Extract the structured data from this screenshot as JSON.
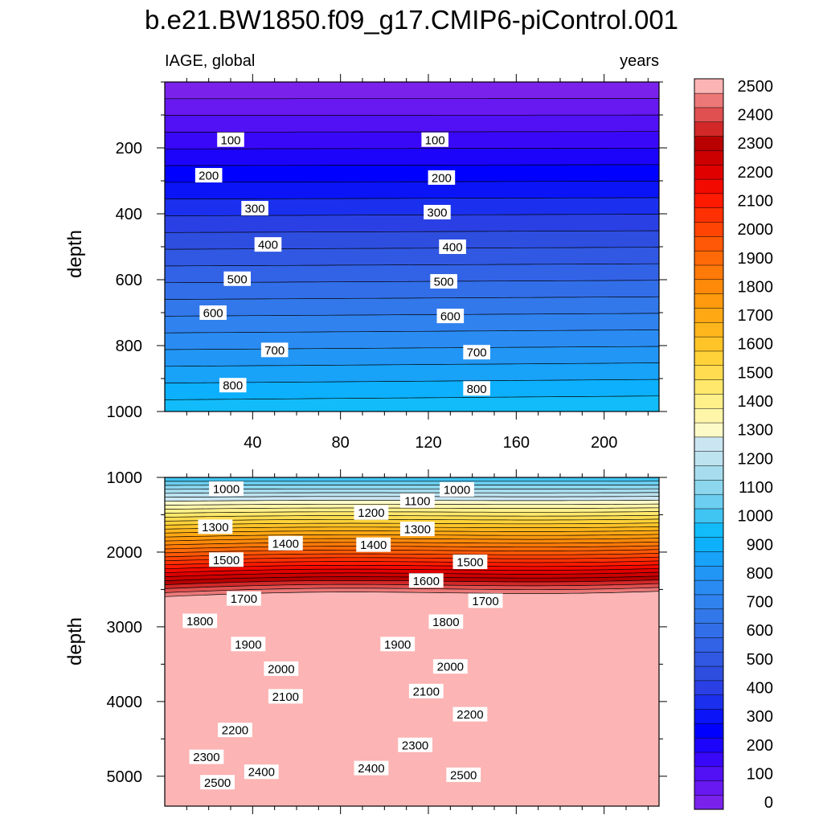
{
  "chart_data": {
    "type": "contour",
    "title": "b.e21.BW1850.f09_g17.CMIP6-piControl.001",
    "left_label": "IAGE, global",
    "right_label": "years",
    "ylabel": "depth",
    "xlim": [
      0,
      225
    ],
    "x_ticks": [
      40,
      80,
      120,
      160,
      200
    ],
    "x_tick_labels": [
      "40",
      "80",
      "120",
      "160",
      "200"
    ],
    "levels": [
      0,
      50,
      100,
      150,
      200,
      250,
      300,
      350,
      400,
      450,
      500,
      550,
      600,
      650,
      700,
      750,
      800,
      850,
      900,
      950,
      1000,
      1050,
      1100,
      1150,
      1200,
      1250,
      1300,
      1350,
      1400,
      1450,
      1500,
      1550,
      1600,
      1650,
      1700,
      1750,
      1800,
      1850,
      1900,
      1950,
      2000,
      2050,
      2100,
      2150,
      2200,
      2250,
      2300,
      2350,
      2400,
      2450,
      2500
    ],
    "colorbar_labels": [
      "0",
      "100",
      "200",
      "300",
      "400",
      "500",
      "600",
      "700",
      "800",
      "900",
      "1000",
      "1100",
      "1200",
      "1300",
      "1400",
      "1500",
      "1600",
      "1700",
      "1800",
      "1900",
      "2000",
      "2100",
      "2200",
      "2300",
      "2400",
      "2500"
    ],
    "colors": [
      "#7a22ec",
      "#6818f0",
      "#5210f5",
      "#3a08f8",
      "#1c04fb",
      "#0000ff",
      "#0a14f6",
      "#1a30ee",
      "#2a40e4",
      "#2e4ee0",
      "#3058e2",
      "#3262e6",
      "#326ee8",
      "#3278ea",
      "#3082ee",
      "#2a8cf2",
      "#2296f4",
      "#18a2f8",
      "#0cb0fc",
      "#12bcfa",
      "#40c4f2",
      "#6ccef0",
      "#8cd6ee",
      "#a6dcee",
      "#bde2f0",
      "#cbe6f2",
      "#fefac8",
      "#fff6aa",
      "#fff08a",
      "#ffe86c",
      "#ffdc50",
      "#ffd23a",
      "#ffc428",
      "#ffb61c",
      "#ffa814",
      "#ff9a0e",
      "#ff8a0a",
      "#ff7a08",
      "#ff6a08",
      "#ff5806",
      "#ff4404",
      "#ff3002",
      "#ff1a00",
      "#f20a00",
      "#e00000",
      "#cc0000",
      "#b80000",
      "#d22828",
      "#e05050",
      "#ec7878",
      "#fcb4b4"
    ],
    "top_panel": {
      "ylim": [
        0,
        1000
      ],
      "y_ticks": [
        200,
        400,
        600,
        800,
        1000
      ],
      "y_tick_labels": [
        "200",
        "400",
        "600",
        "800",
        "1000"
      ],
      "contour_labels": [
        {
          "text": "100",
          "x": 30,
          "depth": 175
        },
        {
          "text": "100",
          "x": 123,
          "depth": 175
        },
        {
          "text": "200",
          "x": 20,
          "depth": 283
        },
        {
          "text": "200",
          "x": 126,
          "depth": 290
        },
        {
          "text": "300",
          "x": 41,
          "depth": 383
        },
        {
          "text": "300",
          "x": 124,
          "depth": 395
        },
        {
          "text": "400",
          "x": 47,
          "depth": 493
        },
        {
          "text": "400",
          "x": 131,
          "depth": 500
        },
        {
          "text": "500",
          "x": 33,
          "depth": 597
        },
        {
          "text": "500",
          "x": 127,
          "depth": 605
        },
        {
          "text": "600",
          "x": 22,
          "depth": 700
        },
        {
          "text": "600",
          "x": 130,
          "depth": 710
        },
        {
          "text": "700",
          "x": 50,
          "depth": 813
        },
        {
          "text": "700",
          "x": 142,
          "depth": 820
        },
        {
          "text": "800",
          "x": 31,
          "depth": 920
        },
        {
          "text": "800",
          "x": 142,
          "depth": 930
        }
      ]
    },
    "bottom_panel": {
      "ylim": [
        1000,
        5400
      ],
      "y_ticks": [
        1000,
        2000,
        3000,
        4000,
        5000
      ],
      "y_tick_labels": [
        "1000",
        "2000",
        "3000",
        "4000",
        "5000"
      ],
      "contour_labels": [
        {
          "text": "1000",
          "x": 28,
          "depth": 1150
        },
        {
          "text": "1000",
          "x": 133,
          "depth": 1160
        },
        {
          "text": "1100",
          "x": 115,
          "depth": 1310
        },
        {
          "text": "1200",
          "x": 94,
          "depth": 1470
        },
        {
          "text": "1300",
          "x": 23,
          "depth": 1660
        },
        {
          "text": "1300",
          "x": 115,
          "depth": 1690
        },
        {
          "text": "1400",
          "x": 55,
          "depth": 1880
        },
        {
          "text": "1400",
          "x": 95,
          "depth": 1900
        },
        {
          "text": "1500",
          "x": 28,
          "depth": 2100
        },
        {
          "text": "1500",
          "x": 139,
          "depth": 2130
        },
        {
          "text": "1600",
          "x": 119,
          "depth": 2380
        },
        {
          "text": "1700",
          "x": 36,
          "depth": 2620
        },
        {
          "text": "1700",
          "x": 146,
          "depth": 2650
        },
        {
          "text": "1800",
          "x": 16,
          "depth": 2920
        },
        {
          "text": "1800",
          "x": 128,
          "depth": 2930
        },
        {
          "text": "1900",
          "x": 38,
          "depth": 3230
        },
        {
          "text": "1900",
          "x": 106,
          "depth": 3230
        },
        {
          "text": "2000",
          "x": 53,
          "depth": 3560
        },
        {
          "text": "2000",
          "x": 130,
          "depth": 3530
        },
        {
          "text": "2100",
          "x": 55,
          "depth": 3930
        },
        {
          "text": "2100",
          "x": 119,
          "depth": 3860
        },
        {
          "text": "2200",
          "x": 32,
          "depth": 4380
        },
        {
          "text": "2200",
          "x": 139,
          "depth": 4170
        },
        {
          "text": "2300",
          "x": 19,
          "depth": 4740
        },
        {
          "text": "2300",
          "x": 114,
          "depth": 4580
        },
        {
          "text": "2400",
          "x": 44,
          "depth": 4940
        },
        {
          "text": "2400",
          "x": 94,
          "depth": 4890
        },
        {
          "text": "2500",
          "x": 24,
          "depth": 5080
        },
        {
          "text": "2500",
          "x": 136,
          "depth": 4980
        }
      ]
    }
  }
}
